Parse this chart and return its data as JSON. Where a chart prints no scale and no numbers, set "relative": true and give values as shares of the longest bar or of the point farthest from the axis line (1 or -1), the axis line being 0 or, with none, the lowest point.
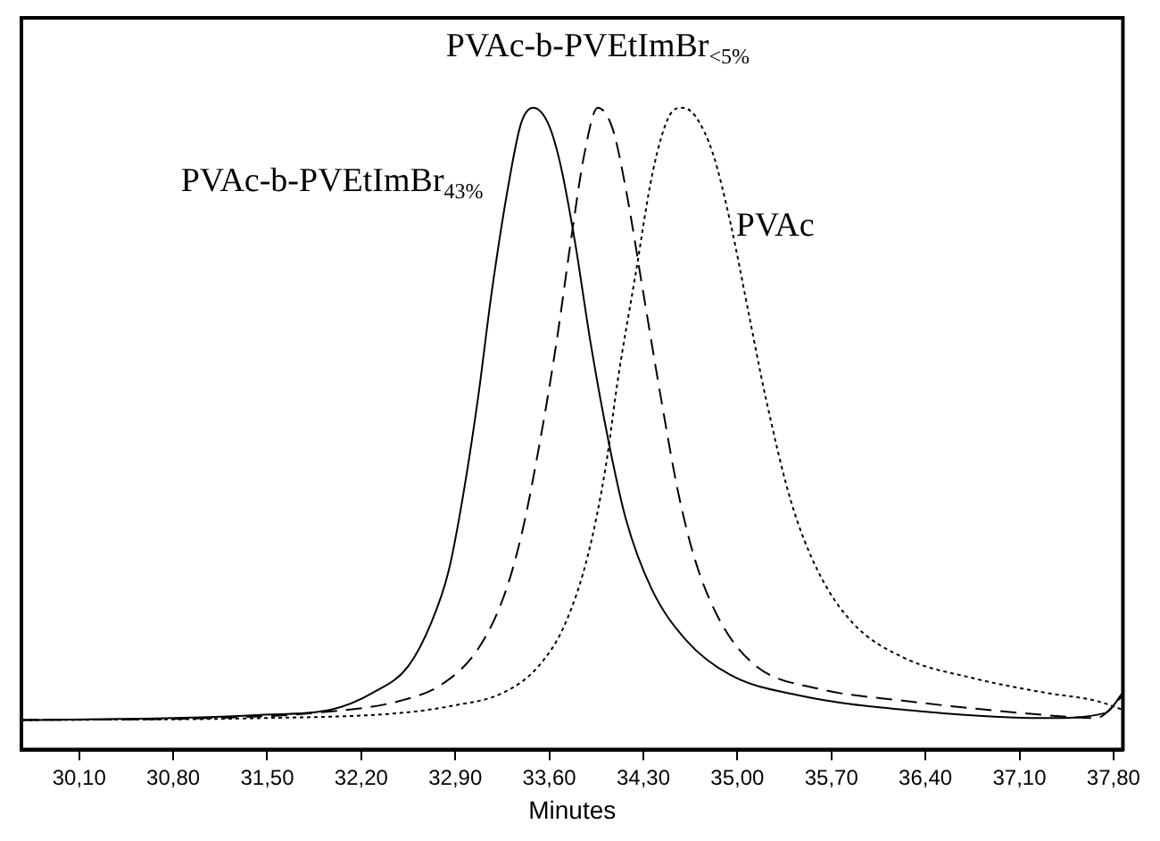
{
  "chart_data": {
    "type": "line",
    "relative": true,
    "xlabel": "Minutes",
    "xlim": [
      29.67,
      37.87
    ],
    "xticks": [
      {
        "value": 30.1,
        "label": "30,10"
      },
      {
        "value": 30.8,
        "label": "30,80"
      },
      {
        "value": 31.5,
        "label": "31,50"
      },
      {
        "value": 32.2,
        "label": "32,20"
      },
      {
        "value": 32.9,
        "label": "32,90"
      },
      {
        "value": 33.6,
        "label": "33,60"
      },
      {
        "value": 34.3,
        "label": "34,30"
      },
      {
        "value": 35.0,
        "label": "35,00"
      },
      {
        "value": 35.7,
        "label": "35,70"
      },
      {
        "value": 36.4,
        "label": "36,40"
      },
      {
        "value": 37.1,
        "label": "37,10"
      },
      {
        "value": 37.8,
        "label": "37,80"
      }
    ],
    "grid": false,
    "legend": false,
    "marker": "none",
    "tick_labels": "x",
    "series": [
      {
        "name": "PVAc-b-PVEtImBr$_{43%}$",
        "color": "#000000",
        "line_style": "solid",
        "x": [
          29.67,
          30.8,
          31.45,
          31.97,
          32.29,
          32.55,
          32.72,
          32.85,
          32.95,
          33.07,
          33.17,
          33.29,
          33.39,
          33.48,
          33.59,
          33.68,
          33.79,
          33.91,
          34.04,
          34.17,
          34.36,
          34.62,
          34.95,
          35.47,
          36.24,
          37.28,
          37.74,
          37.87
        ],
        "values": [
          0.046,
          0.049,
          0.054,
          0.062,
          0.089,
          0.13,
          0.197,
          0.278,
          0.386,
          0.549,
          0.711,
          0.873,
          0.976,
          1.0,
          0.976,
          0.914,
          0.792,
          0.63,
          0.481,
          0.359,
          0.251,
          0.17,
          0.116,
          0.084,
          0.062,
          0.049,
          0.057,
          0.089
        ]
      },
      {
        "name": "PVAc-b-PVEtImBr$_{<5%}$",
        "color": "#000000",
        "line_style": "dashed",
        "x": [
          29.67,
          31.06,
          31.84,
          32.49,
          32.81,
          33.07,
          33.26,
          33.39,
          33.52,
          33.65,
          33.76,
          33.86,
          33.96,
          34.07,
          34.17,
          34.3,
          34.43,
          34.56,
          34.69,
          34.88,
          35.14,
          35.6,
          36.24,
          37.28,
          37.67,
          37.87
        ],
        "values": [
          0.046,
          0.049,
          0.057,
          0.076,
          0.103,
          0.157,
          0.238,
          0.332,
          0.468,
          0.63,
          0.792,
          0.927,
          1.0,
          0.968,
          0.873,
          0.711,
          0.549,
          0.4,
          0.292,
          0.197,
          0.13,
          0.095,
          0.076,
          0.054,
          0.049,
          0.084
        ]
      },
      {
        "name": "PVAc",
        "color": "#000000",
        "line_style": "dotted",
        "x": [
          29.67,
          31.45,
          32.49,
          32.87,
          33.26,
          33.52,
          33.72,
          33.89,
          34.02,
          34.11,
          34.24,
          34.37,
          34.49,
          34.59,
          34.69,
          34.82,
          34.95,
          35.08,
          35.21,
          35.4,
          35.6,
          35.86,
          36.24,
          36.76,
          37.28,
          37.67,
          37.87
        ],
        "values": [
          0.046,
          0.049,
          0.057,
          0.068,
          0.089,
          0.13,
          0.197,
          0.305,
          0.441,
          0.576,
          0.738,
          0.9,
          0.986,
          1.0,
          0.986,
          0.927,
          0.819,
          0.684,
          0.549,
          0.386,
          0.278,
          0.197,
          0.143,
          0.111,
          0.089,
          0.076,
          0.062
        ]
      }
    ]
  }
}
